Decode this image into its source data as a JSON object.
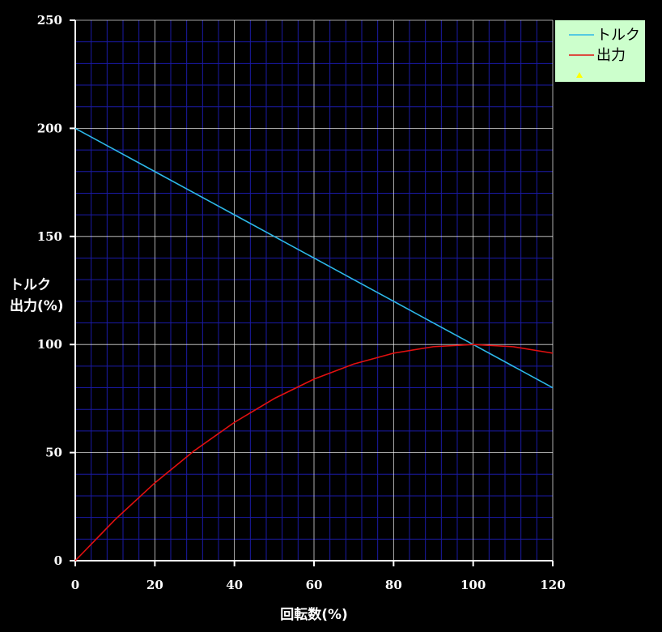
{
  "chart_data": {
    "type": "line",
    "xlabel": "回転数(%)",
    "ylabel_lines": [
      "トルク",
      "出力(%)"
    ],
    "xlim": [
      0,
      120
    ],
    "ylim": [
      0,
      250
    ],
    "x_ticks": [
      "0",
      "20",
      "40",
      "60",
      "80",
      "100",
      "120"
    ],
    "y_ticks": [
      "0",
      "50",
      "100",
      "150",
      "200",
      "250"
    ],
    "x": [
      0,
      10,
      20,
      30,
      40,
      50,
      60,
      70,
      80,
      90,
      100,
      110,
      120
    ],
    "series": [
      {
        "name": "トルク",
        "color": "#2db8e8",
        "values": [
          200,
          190,
          180,
          170,
          160,
          150,
          140,
          130,
          120,
          110,
          100,
          90,
          80
        ]
      },
      {
        "name": "出力",
        "color": "#e21010",
        "values": [
          0,
          19,
          36,
          51,
          64,
          75,
          84,
          91,
          96,
          99,
          100,
          99,
          96
        ]
      }
    ],
    "grid": true,
    "legend_position": "top-right",
    "colors": {
      "background": "#000000",
      "major_grid": "#ffffff",
      "minor_grid": "#1a1aa6",
      "legend_bg": "#ccffcc",
      "legend_marker": "#ffff00"
    }
  }
}
